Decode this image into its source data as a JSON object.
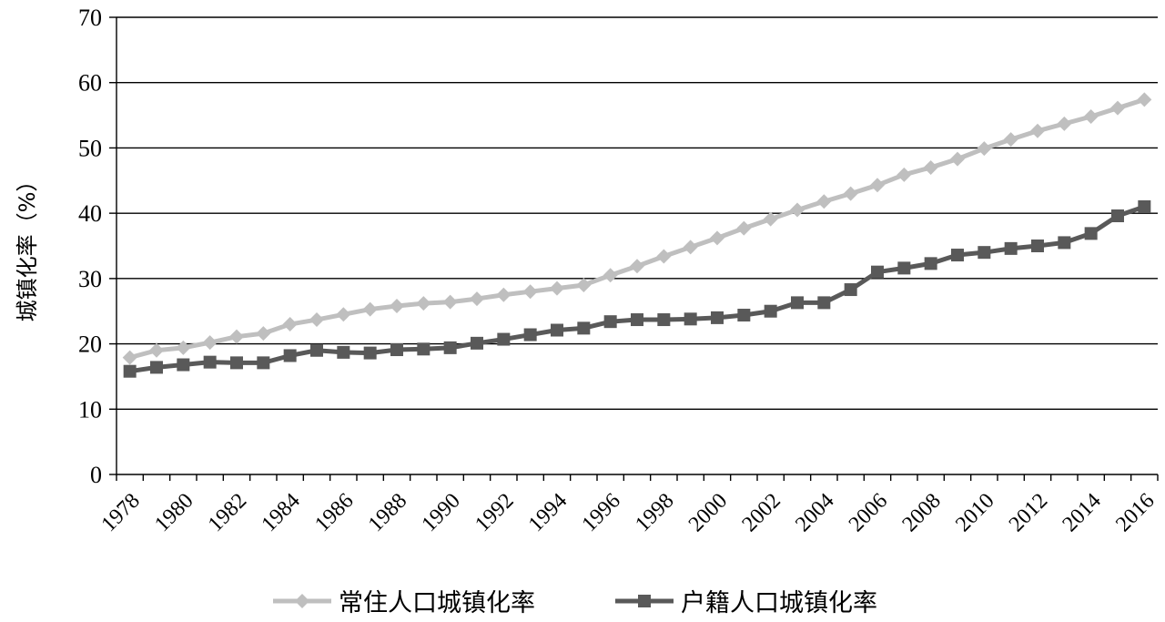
{
  "chart_data": {
    "type": "line",
    "title": "",
    "xlabel": "",
    "ylabel": "城镇化率（%）",
    "ylim": [
      0,
      70
    ],
    "yticks": [
      0,
      10,
      20,
      30,
      40,
      50,
      60,
      70
    ],
    "x": [
      1978,
      1979,
      1980,
      1981,
      1982,
      1983,
      1984,
      1985,
      1986,
      1987,
      1988,
      1989,
      1990,
      1991,
      1992,
      1993,
      1994,
      1995,
      1996,
      1997,
      1998,
      1999,
      2000,
      2001,
      2002,
      2003,
      2004,
      2005,
      2006,
      2007,
      2008,
      2009,
      2010,
      2011,
      2012,
      2013,
      2014,
      2015,
      2016
    ],
    "xtick_labels": [
      "1978",
      "1980",
      "1982",
      "1984",
      "1986",
      "1988",
      "1990",
      "1992",
      "1994",
      "1996",
      "1998",
      "2000",
      "2002",
      "2004",
      "2006",
      "2008",
      "2010",
      "2012",
      "2014",
      "2016"
    ],
    "grid": true,
    "legend_position": "bottom",
    "series": [
      {
        "name": "常住人口城镇化率",
        "marker": "diamond",
        "color": "#bfbfbf",
        "values": [
          17.9,
          19.0,
          19.4,
          20.2,
          21.1,
          21.6,
          23.0,
          23.7,
          24.5,
          25.3,
          25.8,
          26.2,
          26.4,
          26.9,
          27.5,
          28.0,
          28.5,
          29.0,
          30.5,
          31.9,
          33.4,
          34.8,
          36.2,
          37.7,
          39.1,
          40.5,
          41.8,
          43.0,
          44.3,
          45.9,
          47.0,
          48.3,
          49.9,
          51.3,
          52.6,
          53.7,
          54.8,
          56.1,
          57.4
        ]
      },
      {
        "name": "户籍人口城镇化率",
        "marker": "square",
        "color": "#595959",
        "values": [
          15.8,
          16.4,
          16.8,
          17.2,
          17.1,
          17.1,
          18.2,
          19.0,
          18.7,
          18.6,
          19.1,
          19.2,
          19.4,
          20.1,
          20.7,
          21.4,
          22.1,
          22.4,
          23.4,
          23.7,
          23.7,
          23.8,
          24.0,
          24.4,
          25.0,
          26.3,
          26.3,
          28.3,
          31.0,
          31.6,
          32.3,
          33.6,
          34.0,
          34.6,
          35.0,
          35.5,
          36.9,
          39.6,
          41.0
        ]
      }
    ]
  }
}
